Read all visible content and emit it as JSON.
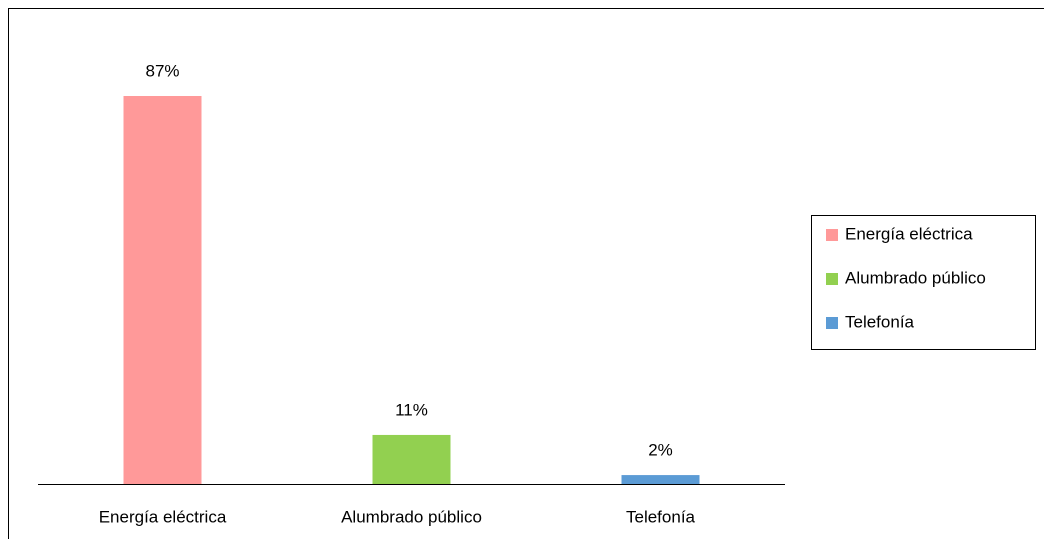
{
  "chart_data": {
    "type": "bar",
    "categories": [
      "Energía eléctrica",
      "Alumbrado público",
      "Telefonía"
    ],
    "values": [
      87,
      11,
      2
    ],
    "value_labels": [
      "87%",
      "11%",
      "2%"
    ],
    "colors": [
      "#ff9999",
      "#92d050",
      "#5b9bd5"
    ],
    "legend": "right"
  }
}
